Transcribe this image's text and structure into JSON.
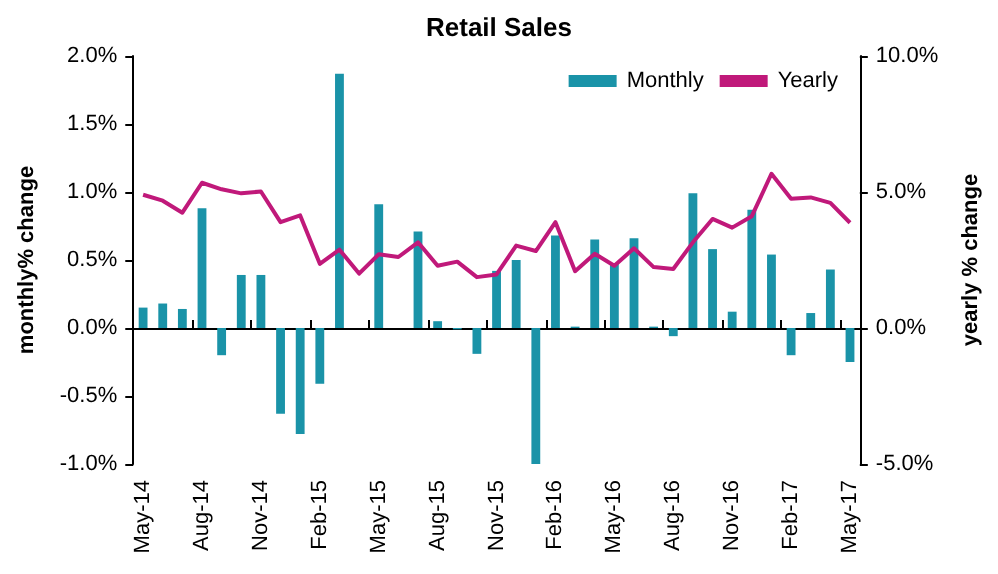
{
  "chart_data": {
    "type": "bar",
    "title": "Retail Sales",
    "ylabel": "monthly% change",
    "y2label": "yearly % change",
    "categories": [
      "May-14",
      null,
      null,
      "Aug-14",
      null,
      null,
      "Nov-14",
      null,
      null,
      "Feb-15",
      null,
      null,
      "May-15",
      null,
      null,
      "Aug-15",
      null,
      null,
      "Nov-15",
      null,
      null,
      "Feb-16",
      null,
      null,
      "May-16",
      null,
      null,
      "Aug-16",
      null,
      null,
      "Nov-16",
      null,
      null,
      "Feb-17",
      null,
      null,
      "May-17"
    ],
    "series": [
      {
        "name": "Monthly",
        "color": "#1a93a8",
        "values": [
          0.15,
          0.18,
          0.14,
          0.88,
          -0.2,
          0.39,
          0.39,
          -0.63,
          -0.78,
          -0.41,
          1.87,
          0,
          0.91,
          0,
          0.71,
          0.05,
          -0.01,
          -0.19,
          0.42,
          0.5,
          -1.0,
          0.68,
          0.01,
          0.65,
          0.47,
          0.66,
          0.01,
          -0.06,
          0.99,
          0.58,
          0.12,
          0.87,
          0.54,
          -0.2,
          0.11,
          0.43,
          -0.25
        ]
      },
      {
        "name": "Yearly",
        "type": "line",
        "axis": "y2",
        "color": "#c0197a",
        "values": [
          4.9,
          4.68,
          4.24,
          5.34,
          5.1,
          4.95,
          5.02,
          3.89,
          4.14,
          2.36,
          2.88,
          2.0,
          2.71,
          2.61,
          3.15,
          2.29,
          2.44,
          1.87,
          1.97,
          3.03,
          2.83,
          3.89,
          2.09,
          2.73,
          2.29,
          2.93,
          2.24,
          2.17,
          3.15,
          4.01,
          3.69,
          4.11,
          5.67,
          4.75,
          4.8,
          4.6,
          3.87
        ]
      }
    ],
    "ylim": [
      -1,
      2
    ],
    "yticks": [
      {
        "value": -1,
        "label": "-1.0%"
      },
      {
        "value": -0.5,
        "label": "-0.5%"
      },
      {
        "value": 0,
        "label": "0.0%"
      },
      {
        "value": 0.5,
        "label": "0.5%"
      },
      {
        "value": 1,
        "label": "1.0%"
      },
      {
        "value": 1.5,
        "label": "1.5%"
      },
      {
        "value": 2,
        "label": "2.0%"
      }
    ],
    "y2lim": [
      -5,
      10
    ],
    "y2ticks": [
      {
        "value": -5,
        "label": "-5.0%"
      },
      {
        "value": 0,
        "label": "0.0%"
      },
      {
        "value": 5,
        "label": "5.0%"
      },
      {
        "value": 10,
        "label": "10.0%"
      }
    ],
    "legend": "top right",
    "marker": "none",
    "line_style": "solid"
  }
}
